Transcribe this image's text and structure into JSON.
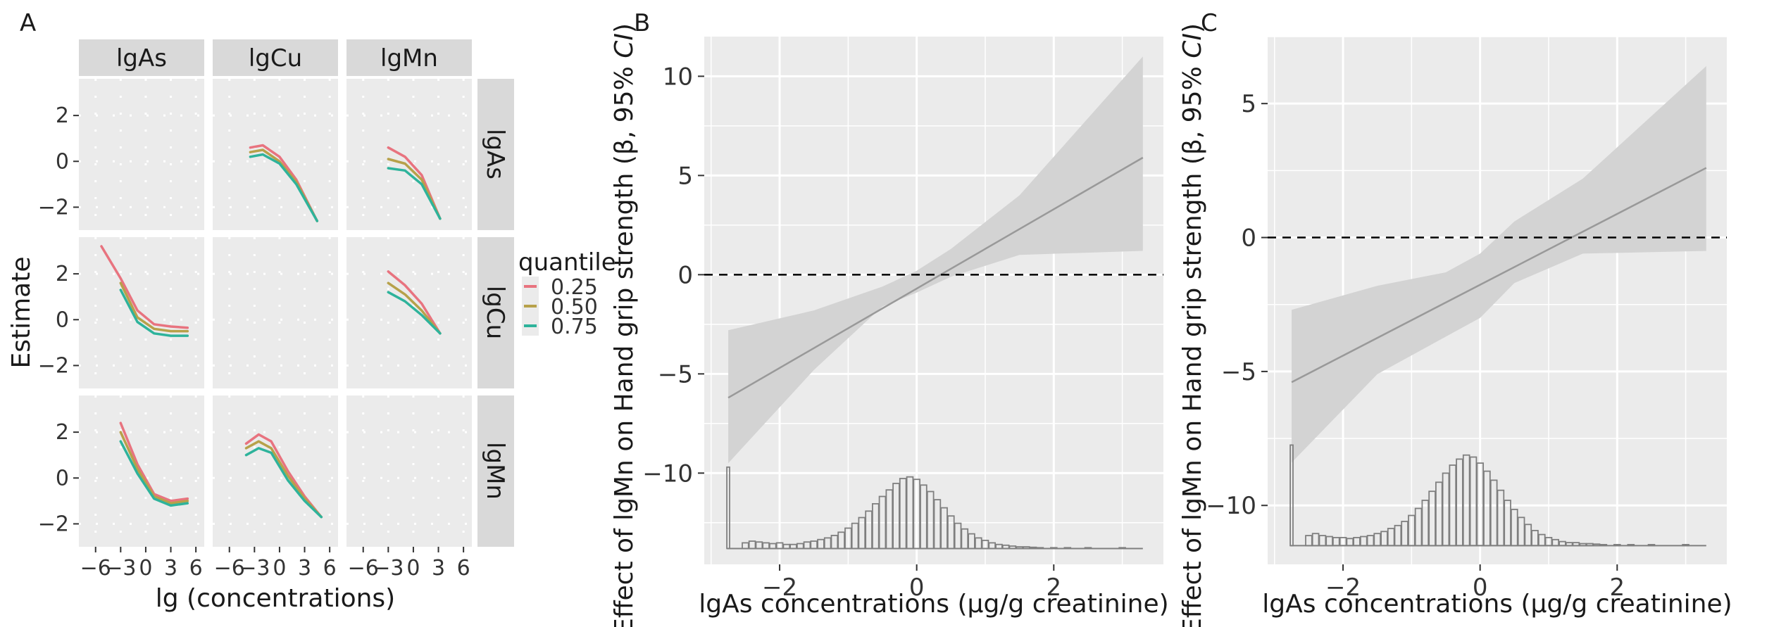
{
  "figure_labels": [
    "A",
    "B",
    "C"
  ],
  "colors": {
    "q25": "#e8737f",
    "q50": "#b7a14a",
    "q75": "#2eb39b",
    "panel_bg": "#ebebeb",
    "strip_bg": "#d9d9d9",
    "ribbon": "#d3d3d3",
    "line": "#999999",
    "hist": "#7f7f7f"
  },
  "chart_data": [
    {
      "id": "A",
      "type": "line",
      "xlabel": "lg (concentrations)",
      "ylabel": "Estimate",
      "xlim": [
        -8,
        7
      ],
      "ylim": [
        -3,
        3.6
      ],
      "xticks": [
        -6,
        -3,
        0,
        3,
        6
      ],
      "xtick_labels": [
        "−6",
        "−3",
        "0",
        "3",
        "6"
      ],
      "yticks": [
        -2,
        0,
        2
      ],
      "ytick_labels": [
        "−2",
        "0",
        "2"
      ],
      "col_strips": [
        "lgAs",
        "lgCu",
        "lgMn"
      ],
      "row_strips": [
        "lgAs",
        "lgCu",
        "lgMn"
      ],
      "legend": {
        "title": "quantile",
        "entries": [
          "0.25",
          "0.50",
          "0.75"
        ],
        "position": "right"
      },
      "facets": [
        {
          "row": 0,
          "col": 1,
          "series": [
            {
              "q": "0.25",
              "x": [
                -3.5,
                -2,
                0,
                2,
                4.5
              ],
              "y": [
                0.6,
                0.7,
                0.2,
                -0.8,
                -2.6
              ]
            },
            {
              "q": "0.50",
              "x": [
                -3.5,
                -2,
                0,
                2,
                4.5
              ],
              "y": [
                0.4,
                0.5,
                0.0,
                -0.9,
                -2.6
              ]
            },
            {
              "q": "0.75",
              "x": [
                -3.5,
                -2,
                0,
                2,
                4.5
              ],
              "y": [
                0.2,
                0.3,
                -0.1,
                -1.0,
                -2.6
              ]
            }
          ]
        },
        {
          "row": 0,
          "col": 2,
          "series": [
            {
              "q": "0.25",
              "x": [
                -3,
                -1,
                1,
                3.2
              ],
              "y": [
                0.6,
                0.2,
                -0.6,
                -2.5
              ]
            },
            {
              "q": "0.50",
              "x": [
                -3,
                -1,
                1,
                3.2
              ],
              "y": [
                0.1,
                -0.1,
                -0.8,
                -2.5
              ]
            },
            {
              "q": "0.75",
              "x": [
                -3,
                -1,
                1,
                3.2
              ],
              "y": [
                -0.3,
                -0.4,
                -1.0,
                -2.5
              ]
            }
          ]
        },
        {
          "row": 1,
          "col": 0,
          "series": [
            {
              "q": "0.25",
              "x": [
                -5.3,
                -3,
                -1,
                1,
                3,
                5
              ],
              "y": [
                3.2,
                1.8,
                0.4,
                -0.2,
                -0.3,
                -0.35
              ]
            },
            {
              "q": "0.50",
              "x": [
                -3,
                -1,
                1,
                3,
                5
              ],
              "y": [
                1.6,
                0.1,
                -0.4,
                -0.5,
                -0.5
              ]
            },
            {
              "q": "0.75",
              "x": [
                -3,
                -1,
                1,
                3,
                5
              ],
              "y": [
                1.3,
                -0.1,
                -0.6,
                -0.7,
                -0.7
              ]
            }
          ]
        },
        {
          "row": 1,
          "col": 2,
          "series": [
            {
              "q": "0.25",
              "x": [
                -3,
                -1,
                1,
                3.2
              ],
              "y": [
                2.1,
                1.5,
                0.7,
                -0.6
              ]
            },
            {
              "q": "0.50",
              "x": [
                -3,
                -1,
                1,
                3.2
              ],
              "y": [
                1.6,
                1.1,
                0.4,
                -0.6
              ]
            },
            {
              "q": "0.75",
              "x": [
                -3,
                -1,
                1,
                3.2
              ],
              "y": [
                1.2,
                0.8,
                0.2,
                -0.6
              ]
            }
          ]
        },
        {
          "row": 2,
          "col": 0,
          "series": [
            {
              "q": "0.25",
              "x": [
                -3,
                -1,
                1,
                3,
                5
              ],
              "y": [
                2.4,
                0.6,
                -0.7,
                -1.0,
                -0.9
              ]
            },
            {
              "q": "0.50",
              "x": [
                -3,
                -1,
                1,
                3,
                5
              ],
              "y": [
                2.0,
                0.4,
                -0.8,
                -1.1,
                -1.0
              ]
            },
            {
              "q": "0.75",
              "x": [
                -3,
                -1,
                1,
                3,
                5
              ],
              "y": [
                1.6,
                0.2,
                -0.9,
                -1.2,
                -1.1
              ]
            }
          ]
        },
        {
          "row": 2,
          "col": 1,
          "series": [
            {
              "q": "0.25",
              "x": [
                -4,
                -2.5,
                -1,
                1,
                3,
                5
              ],
              "y": [
                1.5,
                1.9,
                1.6,
                0.3,
                -0.8,
                -1.7
              ]
            },
            {
              "q": "0.50",
              "x": [
                -4,
                -2.5,
                -1,
                1,
                3,
                5
              ],
              "y": [
                1.3,
                1.6,
                1.3,
                0.1,
                -0.9,
                -1.7
              ]
            },
            {
              "q": "0.75",
              "x": [
                -4,
                -2.5,
                -1,
                1,
                3,
                5
              ],
              "y": [
                1.0,
                1.3,
                1.1,
                -0.1,
                -1.0,
                -1.7
              ]
            }
          ]
        }
      ]
    },
    {
      "id": "B",
      "type": "line",
      "xlabel": "lgAs concentrations (μg/g creatinine)",
      "ylabel_parts": [
        "Effect of lgMn on Hand grip strength (β, 95% ",
        "CI",
        ")"
      ],
      "xlim": [
        -3.1,
        3.6
      ],
      "ylim": [
        -14.6,
        12.0
      ],
      "xticks": [
        -2,
        0,
        2
      ],
      "xtick_labels": [
        "−2",
        "0",
        "2"
      ],
      "yticks": [
        -10,
        -5,
        0,
        5,
        10
      ],
      "ytick_labels": [
        "−10",
        "−5",
        "0",
        "5",
        "10"
      ],
      "reference_line": 0,
      "line": {
        "x": [
          -2.75,
          3.3
        ],
        "y": [
          -6.2,
          5.9
        ]
      },
      "ribbon": {
        "x": [
          -2.75,
          -1.5,
          -0.5,
          0,
          0.5,
          1.5,
          3.3
        ],
        "lower": [
          -9.5,
          -4.8,
          -1.6,
          -0.9,
          -0.1,
          1.0,
          1.2
        ],
        "upper": [
          -2.8,
          -1.8,
          -0.6,
          0.2,
          1.3,
          4.0,
          11.0
        ]
      },
      "histogram_baseline": -13.8,
      "histogram_scale": [
        0,
        1
      ],
      "histogram": {
        "centers": [
          -2.75,
          -2.5,
          -2.4,
          -2.3,
          -2.2,
          -2.1,
          -2.0,
          -1.9,
          -1.8,
          -1.7,
          -1.6,
          -1.5,
          -1.4,
          -1.3,
          -1.2,
          -1.1,
          -1.0,
          -0.9,
          -0.8,
          -0.7,
          -0.6,
          -0.5,
          -0.4,
          -0.3,
          -0.2,
          -0.1,
          0.0,
          0.1,
          0.2,
          0.3,
          0.4,
          0.5,
          0.6,
          0.7,
          0.8,
          0.9,
          1.0,
          1.1,
          1.2,
          1.3,
          1.4,
          1.5,
          1.6,
          1.7,
          1.8,
          2.0,
          2.2,
          2.5,
          3.0
        ],
        "counts": [
          1.0,
          0.07,
          0.09,
          0.08,
          0.07,
          0.06,
          0.07,
          0.05,
          0.05,
          0.06,
          0.08,
          0.09,
          0.11,
          0.13,
          0.16,
          0.2,
          0.25,
          0.31,
          0.38,
          0.46,
          0.55,
          0.64,
          0.72,
          0.8,
          0.86,
          0.88,
          0.85,
          0.78,
          0.7,
          0.6,
          0.5,
          0.4,
          0.31,
          0.24,
          0.18,
          0.13,
          0.1,
          0.07,
          0.05,
          0.04,
          0.03,
          0.02,
          0.02,
          0.015,
          0.01,
          0.01,
          0.01,
          0.01,
          0.01
        ]
      }
    },
    {
      "id": "C",
      "type": "line",
      "xlabel": "lgAs concentrations (μg/g creatinine)",
      "ylabel_parts": [
        "Effect of lgMn on Hand grip strength (β, 95% ",
        "CI",
        ")"
      ],
      "xlim": [
        -3.1,
        3.6
      ],
      "ylim": [
        -12.2,
        7.5
      ],
      "xticks": [
        -2,
        0,
        2
      ],
      "xtick_labels": [
        "−2",
        "0",
        "2"
      ],
      "yticks": [
        -10,
        -5,
        0,
        5
      ],
      "ytick_labels": [
        "−10",
        "−5",
        "0",
        "5"
      ],
      "reference_line": 0,
      "line": {
        "x": [
          -2.75,
          3.3
        ],
        "y": [
          -5.4,
          2.6
        ]
      },
      "ribbon": {
        "x": [
          -2.75,
          -1.5,
          -0.5,
          0,
          0.5,
          1.5,
          3.3
        ],
        "lower": [
          -8.4,
          -5.1,
          -3.7,
          -3.0,
          -1.7,
          -0.6,
          -0.5
        ],
        "upper": [
          -2.7,
          -1.8,
          -1.3,
          -0.6,
          0.6,
          2.2,
          6.4
        ]
      },
      "histogram_baseline": -11.5,
      "histogram_scale": [
        0,
        1
      ],
      "histogram": {
        "centers": [
          -2.75,
          -2.5,
          -2.4,
          -2.3,
          -2.2,
          -2.1,
          -2.0,
          -1.9,
          -1.8,
          -1.7,
          -1.6,
          -1.5,
          -1.4,
          -1.3,
          -1.2,
          -1.1,
          -1.0,
          -0.9,
          -0.8,
          -0.7,
          -0.6,
          -0.5,
          -0.4,
          -0.3,
          -0.2,
          -0.1,
          0.0,
          0.1,
          0.2,
          0.3,
          0.4,
          0.5,
          0.6,
          0.7,
          0.8,
          0.9,
          1.0,
          1.1,
          1.2,
          1.3,
          1.4,
          1.5,
          1.6,
          1.7,
          1.8,
          2.0,
          2.2,
          2.5,
          3.0
        ],
        "counts": [
          1.0,
          0.1,
          0.12,
          0.1,
          0.09,
          0.08,
          0.08,
          0.07,
          0.08,
          0.09,
          0.1,
          0.12,
          0.14,
          0.17,
          0.2,
          0.24,
          0.3,
          0.37,
          0.45,
          0.54,
          0.63,
          0.72,
          0.8,
          0.86,
          0.9,
          0.88,
          0.82,
          0.74,
          0.65,
          0.55,
          0.45,
          0.36,
          0.28,
          0.21,
          0.15,
          0.11,
          0.08,
          0.06,
          0.04,
          0.03,
          0.03,
          0.02,
          0.02,
          0.015,
          0.01,
          0.01,
          0.01,
          0.01,
          0.01
        ]
      }
    }
  ]
}
